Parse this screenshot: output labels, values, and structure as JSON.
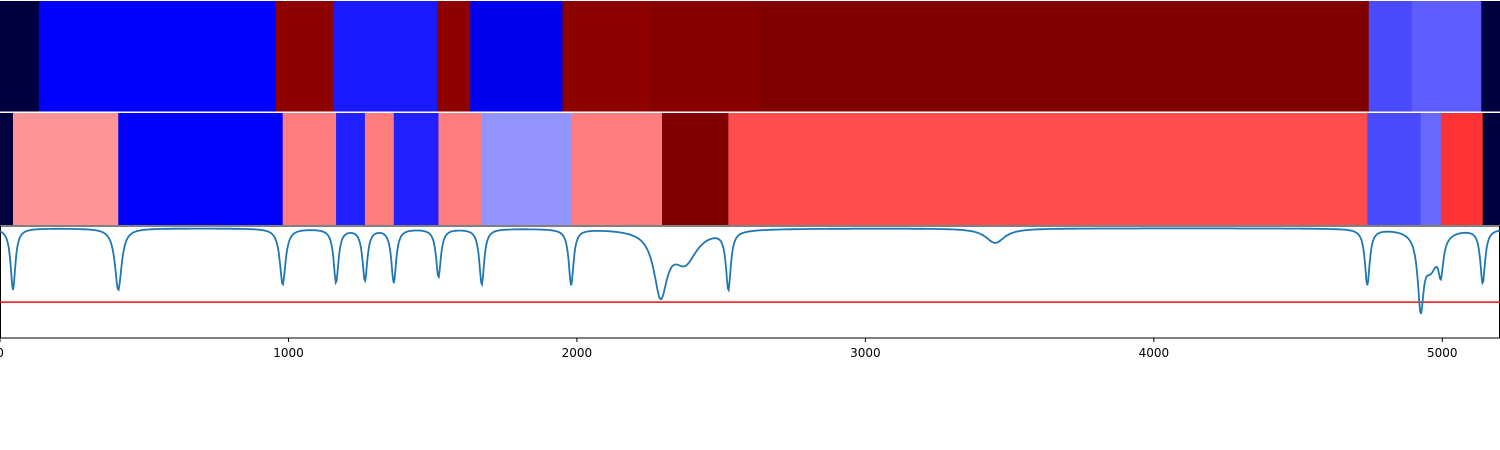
{
  "chart_data": [
    {
      "type": "heatmap",
      "row": "top-segmentation",
      "segments": [
        {
          "start": 0,
          "end": 135,
          "color": "#000040"
        },
        {
          "start": 135,
          "end": 955,
          "color": "#0000ff"
        },
        {
          "start": 955,
          "end": 1155,
          "color": "#8f0000"
        },
        {
          "start": 1155,
          "end": 1515,
          "color": "#1a1aff"
        },
        {
          "start": 1515,
          "end": 1630,
          "color": "#8f0000"
        },
        {
          "start": 1630,
          "end": 1950,
          "color": "#0000f0"
        },
        {
          "start": 1950,
          "end": 2255,
          "color": "#8e0000"
        },
        {
          "start": 2255,
          "end": 2640,
          "color": "#860000"
        },
        {
          "start": 2640,
          "end": 4745,
          "color": "#800000"
        },
        {
          "start": 4745,
          "end": 4895,
          "color": "#4a4aff"
        },
        {
          "start": 4895,
          "end": 5135,
          "color": "#5e5eff"
        },
        {
          "start": 5135,
          "end": 5200,
          "color": "#000040"
        }
      ]
    },
    {
      "type": "heatmap",
      "row": "middle-segmentation",
      "segments": [
        {
          "start": 0,
          "end": 45,
          "color": "#000040"
        },
        {
          "start": 45,
          "end": 410,
          "color": "#ff9494"
        },
        {
          "start": 410,
          "end": 980,
          "color": "#0000ff"
        },
        {
          "start": 980,
          "end": 1165,
          "color": "#ff7d7d"
        },
        {
          "start": 1165,
          "end": 1265,
          "color": "#2121ff"
        },
        {
          "start": 1265,
          "end": 1365,
          "color": "#ff7d7d"
        },
        {
          "start": 1365,
          "end": 1520,
          "color": "#2121ff"
        },
        {
          "start": 1520,
          "end": 1670,
          "color": "#ff7d7d"
        },
        {
          "start": 1670,
          "end": 1980,
          "color": "#9494ff"
        },
        {
          "start": 1980,
          "end": 2295,
          "color": "#ff7d7d"
        },
        {
          "start": 2295,
          "end": 2525,
          "color": "#7f0000"
        },
        {
          "start": 2525,
          "end": 4740,
          "color": "#ff4d4d"
        },
        {
          "start": 4740,
          "end": 4925,
          "color": "#4a4aff"
        },
        {
          "start": 4925,
          "end": 4995,
          "color": "#6969ff"
        },
        {
          "start": 4995,
          "end": 5140,
          "color": "#ff3333"
        },
        {
          "start": 5140,
          "end": 5200,
          "color": "#000040"
        }
      ]
    },
    {
      "type": "line",
      "row": "signal",
      "xlim": [
        0,
        5200
      ],
      "ylim": [
        0,
        1
      ],
      "threshold": {
        "y": 0.32,
        "color": "#ee1111"
      },
      "line_color": "#1f77b4",
      "baseline": 0.98,
      "dips": [
        {
          "x": 45,
          "depth": 0.55,
          "width": 10
        },
        {
          "x": 410,
          "depth": 0.55,
          "width": 14
        },
        {
          "x": 980,
          "depth": 0.5,
          "width": 12
        },
        {
          "x": 1165,
          "depth": 0.48,
          "width": 10
        },
        {
          "x": 1265,
          "depth": 0.46,
          "width": 10
        },
        {
          "x": 1365,
          "depth": 0.48,
          "width": 10
        },
        {
          "x": 1520,
          "depth": 0.43,
          "width": 10
        },
        {
          "x": 1670,
          "depth": 0.5,
          "width": 10
        },
        {
          "x": 1980,
          "depth": 0.5,
          "width": 10
        },
        {
          "x": 2290,
          "depth": 0.56,
          "width": 28
        },
        {
          "x": 2375,
          "depth": 0.28,
          "width": 50
        },
        {
          "x": 2525,
          "depth": 0.52,
          "width": 10
        },
        {
          "x": 3450,
          "depth": 0.13,
          "width": 40
        },
        {
          "x": 4740,
          "depth": 0.5,
          "width": 10
        },
        {
          "x": 4925,
          "depth": 0.62,
          "width": 12
        },
        {
          "x": 4960,
          "depth": 0.32,
          "width": 30
        },
        {
          "x": 4995,
          "depth": 0.3,
          "width": 10
        },
        {
          "x": 5140,
          "depth": 0.48,
          "width": 10
        }
      ],
      "xticks": [
        0,
        1000,
        2000,
        3000,
        4000,
        5000
      ],
      "xtick_labels": [
        "0",
        "1000",
        "2000",
        "3000",
        "4000",
        "5000"
      ]
    }
  ]
}
